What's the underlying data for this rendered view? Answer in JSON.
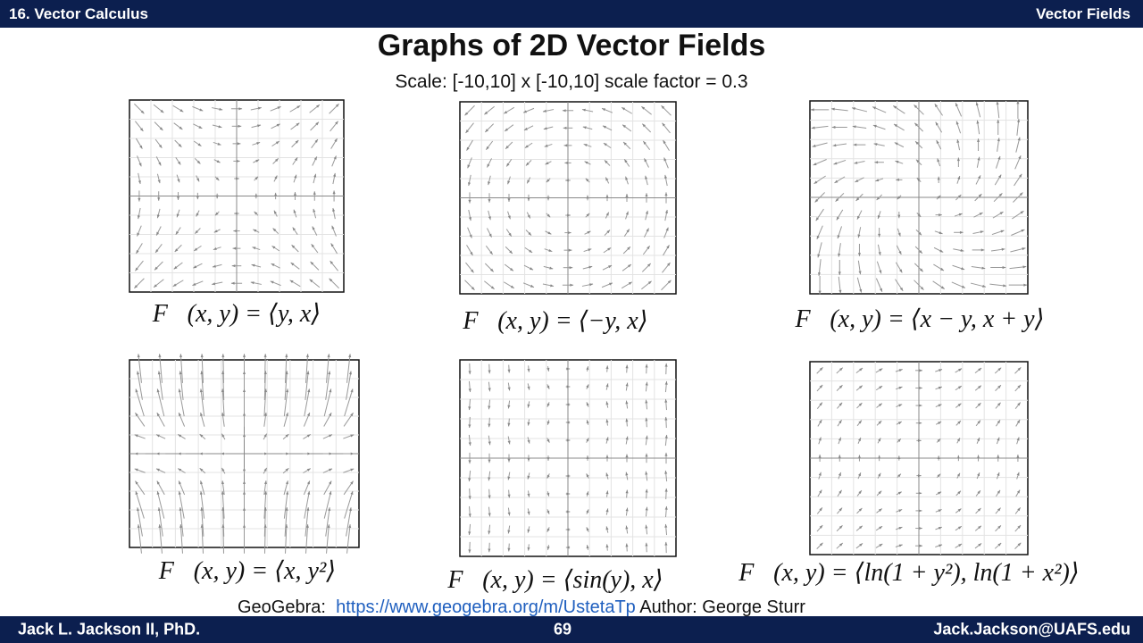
{
  "header": {
    "left": "16. Vector Calculus",
    "right": "Vector Fields"
  },
  "title": "Graphs of 2D Vector Fields",
  "subtitle": "Scale:  [-10,10] x [-10,10] scale factor = 0.3",
  "panels": [
    {
      "formula": "F⃗(x, y) = ⟨y, x⟩"
    },
    {
      "formula": "F⃗(x, y) = ⟨−y, x⟩"
    },
    {
      "formula": "F⃗(x, y) = ⟨x − y, x + y⟩"
    },
    {
      "formula": "F⃗(x, y) = ⟨x, y²⟩"
    },
    {
      "formula": "F⃗(x, y) = ⟨sin(y), x⟩"
    },
    {
      "formula": "F⃗(x, y) = ⟨ln(1 + y²), ln(1 + x²)⟩"
    }
  ],
  "credit": {
    "source": "GeoGebra:",
    "link": "https://www.geogebra.org/m/UstetaTp",
    "author": "Author:  George Sturr"
  },
  "footer": {
    "left": "Jack L. Jackson II, PhD.",
    "center": "69",
    "right": "Jack.Jackson@UAFS.edu"
  }
}
